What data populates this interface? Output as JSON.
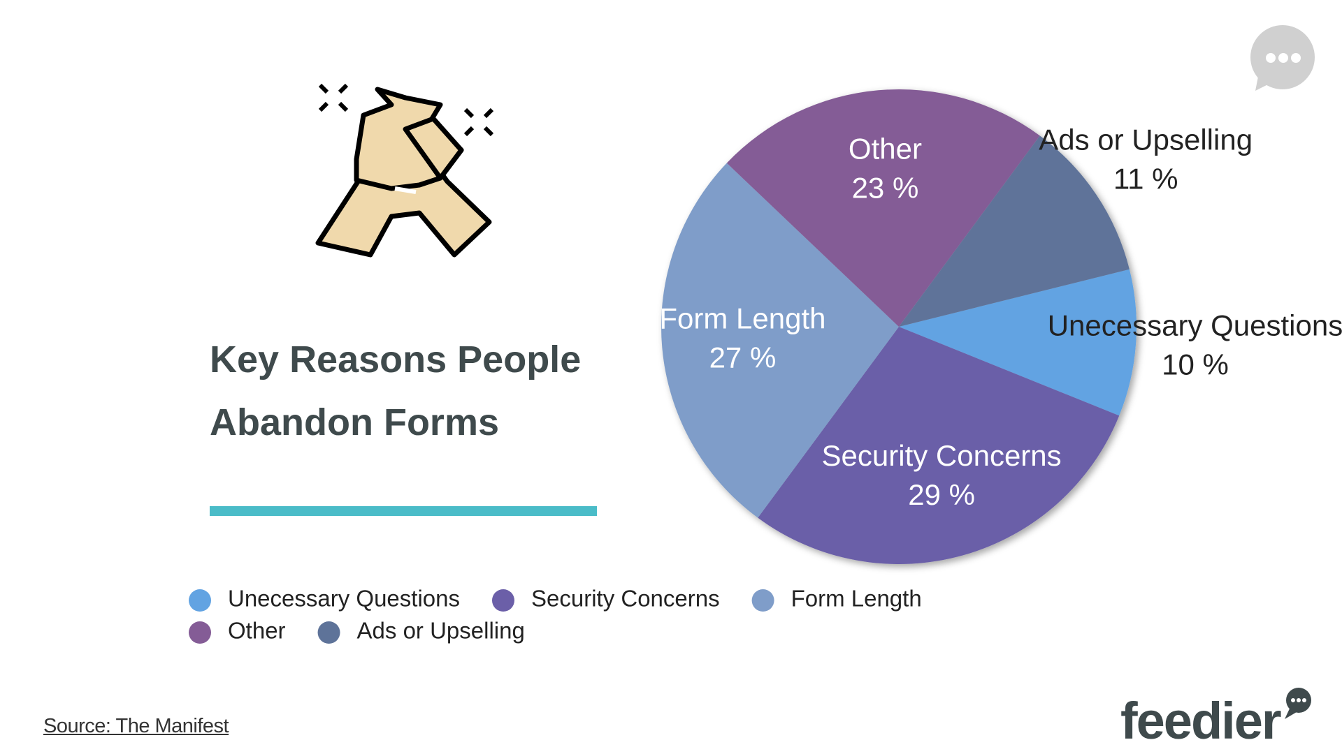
{
  "chart_data": {
    "type": "pie",
    "title": "Key Reasons People Abandon Forms",
    "categories": [
      "Unecessary Questions",
      "Security Concerns",
      "Form Length",
      "Other",
      "Ads or Upselling"
    ],
    "values": [
      10,
      29,
      27,
      23,
      11
    ],
    "value_labels": [
      "10 %",
      "29 %",
      "27 %",
      "23 %",
      "11 %"
    ],
    "colors": [
      "#62a3e2",
      "#6b5fa8",
      "#7f9dc9",
      "#845c96",
      "#5e7399"
    ],
    "legend": "bottom"
  },
  "source": "Source: The Manifest",
  "brand": "feedier"
}
